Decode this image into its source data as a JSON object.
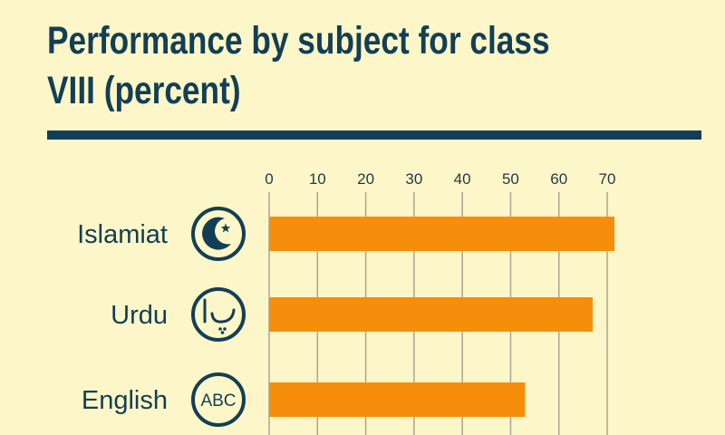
{
  "chart_data": {
    "type": "bar",
    "orientation": "horizontal",
    "title": "Performance by subject for class VIII (percent)",
    "categories": [
      "Islamiat",
      "Urdu",
      "English"
    ],
    "values": [
      71.5,
      67,
      53
    ],
    "xlim": [
      0,
      70
    ],
    "x_ticks": [
      0,
      10,
      20,
      30,
      40,
      50,
      60,
      70
    ],
    "grid": true,
    "colors": {
      "bar": "#f68e0b",
      "text": "#123f55",
      "grid": "#a8a597",
      "background": "#fdf6c8"
    },
    "icons": [
      {
        "category": "Islamiat",
        "name": "crescent-star-icon"
      },
      {
        "category": "Urdu",
        "name": "urdu-letters-icon"
      },
      {
        "category": "English",
        "name": "abc-icon",
        "text": "ABC"
      }
    ]
  }
}
